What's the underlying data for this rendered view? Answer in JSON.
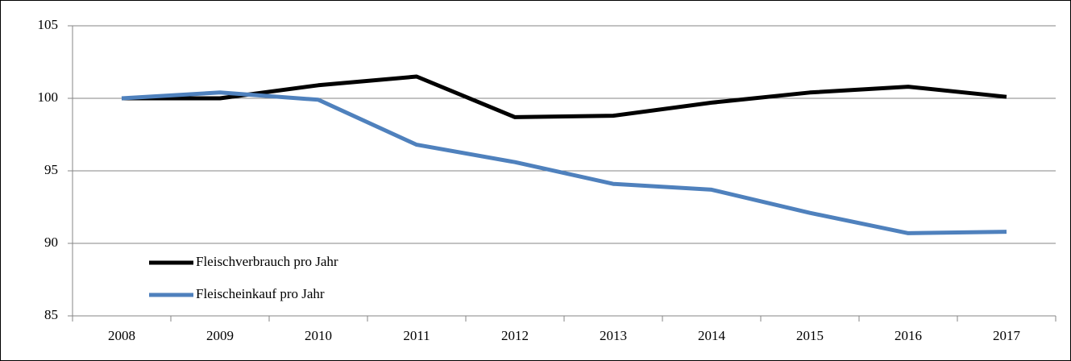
{
  "chart_data": {
    "type": "line",
    "categories": [
      "2008",
      "2009",
      "2010",
      "2011",
      "2012",
      "2013",
      "2014",
      "2015",
      "2016",
      "2017"
    ],
    "series": [
      {
        "name": "Fleischverbrauch pro Jahr",
        "color": "#000000",
        "values": [
          100,
          100,
          100.9,
          101.5,
          98.7,
          98.8,
          99.7,
          100.4,
          100.8,
          100.1
        ]
      },
      {
        "name": "Fleischeinkauf pro Jahr",
        "color": "#4f81bd",
        "values": [
          100,
          100.4,
          99.9,
          96.8,
          95.6,
          94.1,
          93.7,
          92.1,
          90.7,
          90.8
        ]
      }
    ],
    "ylim": [
      85,
      105
    ],
    "yticks": [
      85,
      90,
      95,
      100,
      105
    ],
    "grid": true,
    "legend": "lower-left"
  }
}
